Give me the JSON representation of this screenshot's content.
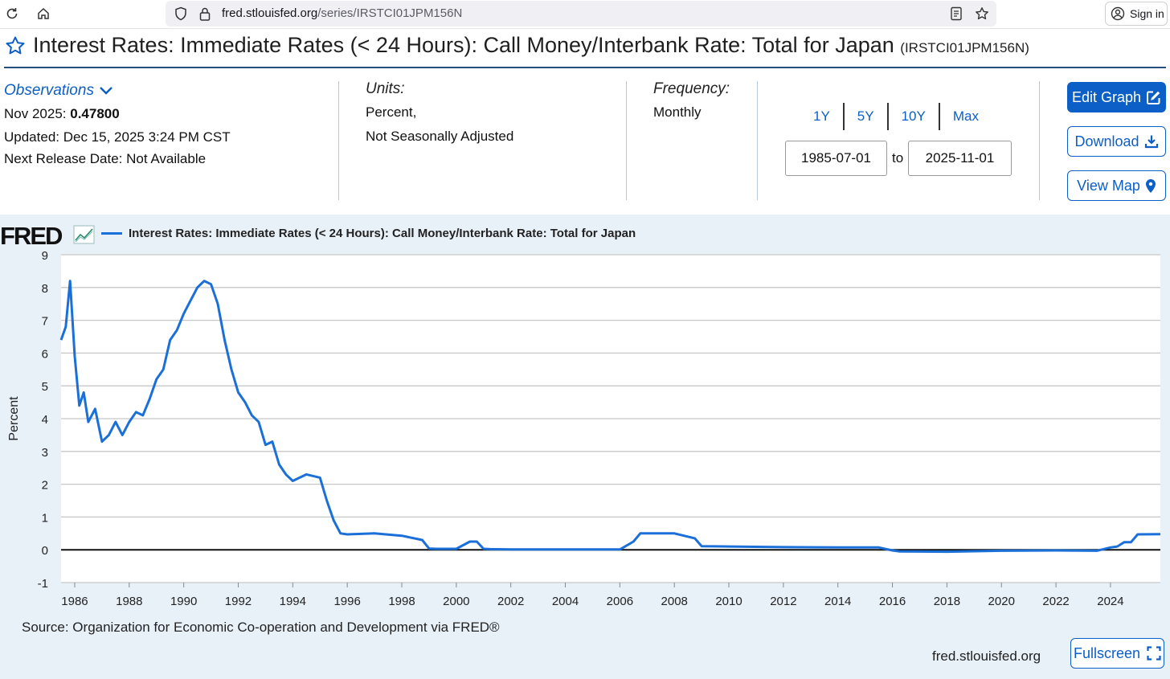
{
  "browser": {
    "url_host": "fred.stlouisfed.org",
    "url_path": "/series/IRSTCI01JPM156N",
    "sign_in_label": "Sign in"
  },
  "header": {
    "title": "Interest Rates: Immediate Rates (< 24 Hours): Call Money/Interbank Rate: Total for Japan",
    "series_code": "(IRSTCI01JPM156N)"
  },
  "observations": {
    "link_label": "Observations",
    "latest_label": "Nov 2025:",
    "latest_value": "0.47800",
    "updated": "Updated: Dec 15, 2025 3:24 PM CST",
    "next_release": "Next Release Date: Not Available"
  },
  "units": {
    "label": "Units:",
    "line1": "Percent,",
    "line2": "Not Seasonally Adjusted"
  },
  "frequency": {
    "label": "Frequency:",
    "value": "Monthly"
  },
  "range": {
    "buttons": [
      "1Y",
      "5Y",
      "10Y",
      "Max"
    ],
    "start": "1985-07-01",
    "to_label": "to",
    "end": "2025-11-01"
  },
  "actions": {
    "edit": "Edit Graph",
    "download": "Download",
    "map": "View Map"
  },
  "chart_panel": {
    "logo": "FRED",
    "source": "Source: Organization for Economic Co-operation and Development via FRED®",
    "site": "fred.stlouisfed.org",
    "fullscreen": "Fullscreen"
  },
  "colors": {
    "accent": "#0c5fc7",
    "series": "#1a6fd8",
    "panel_bg": "#e8f0f8"
  },
  "chart_data": {
    "type": "line",
    "title": "Interest Rates: Immediate Rates (< 24 Hours): Call Money/Interbank Rate: Total for Japan",
    "xlabel": "",
    "ylabel": "Percent",
    "xlim": [
      1985.5,
      2025.83
    ],
    "ylim": [
      -1,
      9
    ],
    "yticks": [
      9,
      8,
      7,
      6,
      5,
      4,
      3,
      2,
      1,
      0,
      -1
    ],
    "xticks": [
      1986,
      1988,
      1990,
      1992,
      1994,
      1996,
      1998,
      2000,
      2002,
      2004,
      2006,
      2008,
      2010,
      2012,
      2014,
      2016,
      2018,
      2020,
      2022,
      2024
    ],
    "grid": true,
    "legend": "top-left",
    "series": [
      {
        "name": "Interest Rates: Immediate Rates (< 24 Hours): Call Money/Interbank Rate: Total for Japan",
        "x": [
          1985.5,
          1985.67,
          1985.83,
          1986.0,
          1986.17,
          1986.33,
          1986.5,
          1986.75,
          1987.0,
          1987.25,
          1987.5,
          1987.75,
          1988.0,
          1988.25,
          1988.5,
          1988.75,
          1989.0,
          1989.25,
          1989.5,
          1989.75,
          1990.0,
          1990.25,
          1990.5,
          1990.75,
          1991.0,
          1991.25,
          1991.5,
          1991.75,
          1992.0,
          1992.25,
          1992.5,
          1992.75,
          1993.0,
          1993.25,
          1993.5,
          1993.75,
          1994.0,
          1994.5,
          1995.0,
          1995.25,
          1995.5,
          1995.75,
          1996.0,
          1997.0,
          1998.0,
          1998.75,
          1999.0,
          1999.25,
          2000.0,
          2000.5,
          2000.75,
          2001.0,
          2001.25,
          2002.0,
          2004.0,
          2006.0,
          2006.5,
          2006.75,
          2007.0,
          2007.25,
          2008.0,
          2008.75,
          2009.0,
          2010.0,
          2012.0,
          2014.0,
          2015.5,
          2016.0,
          2016.25,
          2018.0,
          2020.0,
          2022.0,
          2023.5,
          2024.0,
          2024.25,
          2024.5,
          2024.75,
          2025.0,
          2025.83
        ],
        "values": [
          6.4,
          6.8,
          8.2,
          5.9,
          4.4,
          4.8,
          3.9,
          4.3,
          3.3,
          3.5,
          3.9,
          3.5,
          3.9,
          4.2,
          4.1,
          4.6,
          5.2,
          5.5,
          6.4,
          6.7,
          7.2,
          7.6,
          8.0,
          8.2,
          8.1,
          7.5,
          6.4,
          5.5,
          4.8,
          4.5,
          4.1,
          3.9,
          3.2,
          3.3,
          2.6,
          2.3,
          2.1,
          2.3,
          2.2,
          1.5,
          0.9,
          0.5,
          0.47,
          0.5,
          0.43,
          0.3,
          0.04,
          0.03,
          0.03,
          0.25,
          0.25,
          0.03,
          0.02,
          0.01,
          0.01,
          0.01,
          0.25,
          0.5,
          0.5,
          0.5,
          0.5,
          0.35,
          0.11,
          0.1,
          0.08,
          0.07,
          0.07,
          -0.02,
          -0.05,
          -0.06,
          -0.03,
          -0.02,
          -0.03,
          0.07,
          0.1,
          0.23,
          0.23,
          0.47,
          0.478
        ]
      }
    ]
  }
}
